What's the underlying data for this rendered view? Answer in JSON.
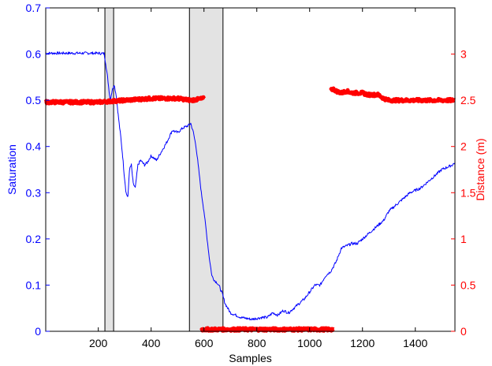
{
  "chart_data": {
    "type": "line",
    "xlabel": "Samples",
    "ylabel_left": "Saturation",
    "ylabel_right": "Distance (m)",
    "xlim": [
      1,
      1550
    ],
    "ylim_left": [
      0,
      0.7
    ],
    "ylim_right": [
      0,
      3.5
    ],
    "x_ticks": [
      200,
      400,
      600,
      800,
      1000,
      1200,
      1400
    ],
    "y_left_ticks": [
      0,
      0.1,
      0.2,
      0.3,
      0.4,
      0.5,
      0.6,
      0.7
    ],
    "y_right_ticks": [
      0,
      0.5,
      1,
      1.5,
      2,
      2.5,
      3
    ],
    "grid": false,
    "colors": {
      "left_axis": "#0000ff",
      "right_axis": "#ff0000",
      "shade": "#e3e3e3",
      "frame": "#000000"
    },
    "shaded_regions": [
      [
        225,
        258
      ],
      [
        545,
        672
      ]
    ],
    "series": [
      {
        "axis": "left",
        "color": "#0000ff",
        "style": "line",
        "x": [
          1,
          100,
          200,
          222,
          228,
          235,
          245,
          252,
          260,
          268,
          275,
          285,
          292,
          298,
          305,
          312,
          318,
          325,
          332,
          340,
          350,
          360,
          375,
          385,
          400,
          420,
          440,
          460,
          480,
          500,
          520,
          540,
          550,
          560,
          570,
          580,
          590,
          600,
          610,
          620,
          630,
          640,
          650,
          660,
          670,
          680,
          700,
          720,
          740,
          760,
          780,
          800,
          820,
          840,
          860,
          880,
          900,
          920,
          940,
          960,
          980,
          1000,
          1020,
          1040,
          1060,
          1080,
          1100,
          1120,
          1140,
          1160,
          1180,
          1200,
          1220,
          1240,
          1260,
          1280,
          1300,
          1320,
          1340,
          1360,
          1380,
          1400,
          1420,
          1440,
          1460,
          1480,
          1500,
          1520,
          1540,
          1550
        ],
        "y": [
          0.602,
          0.602,
          0.602,
          0.601,
          0.58,
          0.55,
          0.5,
          0.52,
          0.535,
          0.51,
          0.47,
          0.42,
          0.38,
          0.34,
          0.3,
          0.29,
          0.35,
          0.36,
          0.32,
          0.31,
          0.36,
          0.37,
          0.36,
          0.365,
          0.38,
          0.37,
          0.39,
          0.41,
          0.435,
          0.43,
          0.44,
          0.445,
          0.45,
          0.43,
          0.4,
          0.35,
          0.3,
          0.26,
          0.21,
          0.16,
          0.12,
          0.11,
          0.105,
          0.095,
          0.08,
          0.06,
          0.04,
          0.035,
          0.03,
          0.028,
          0.026,
          0.028,
          0.03,
          0.03,
          0.04,
          0.035,
          0.045,
          0.04,
          0.05,
          0.06,
          0.07,
          0.085,
          0.1,
          0.1,
          0.12,
          0.13,
          0.15,
          0.18,
          0.185,
          0.19,
          0.19,
          0.2,
          0.21,
          0.22,
          0.23,
          0.24,
          0.26,
          0.27,
          0.28,
          0.29,
          0.3,
          0.305,
          0.31,
          0.32,
          0.33,
          0.34,
          0.35,
          0.355,
          0.36,
          0.365
        ]
      },
      {
        "axis": "right",
        "color": "#ff0000",
        "style": "thick-line",
        "x": [
          1,
          100,
          200,
          300,
          400,
          500,
          550,
          600
        ],
        "y": [
          2.48,
          2.48,
          2.48,
          2.5,
          2.52,
          2.52,
          2.5,
          2.52
        ]
      },
      {
        "axis": "right",
        "color": "#ff0000",
        "style": "thick-line",
        "x": [
          1080,
          1090,
          1100,
          1120,
          1140,
          1160,
          1180,
          1200,
          1220,
          1240,
          1260,
          1280,
          1300,
          1350,
          1400,
          1450,
          1500,
          1550
        ],
        "y": [
          2.62,
          2.62,
          2.6,
          2.58,
          2.6,
          2.58,
          2.58,
          2.58,
          2.56,
          2.56,
          2.56,
          2.52,
          2.5,
          2.5,
          2.5,
          2.5,
          2.5,
          2.5
        ]
      },
      {
        "axis": "right",
        "color": "#ff0000",
        "style": "thick-line",
        "x": [
          590,
          600,
          700,
          800,
          900,
          1000,
          1080,
          1090
        ],
        "y": [
          0.02,
          0.02,
          0.02,
          0.02,
          0.02,
          0.02,
          0.02,
          0.02
        ]
      }
    ]
  }
}
